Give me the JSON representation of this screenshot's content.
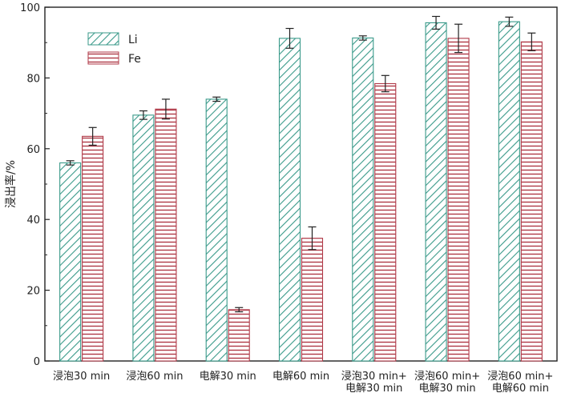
{
  "chart_data": {
    "type": "bar",
    "title": "",
    "xlabel": "",
    "ylabel": "浸出率/%",
    "ylim": [
      0,
      100
    ],
    "yticks": [
      "0",
      "20",
      "40",
      "60",
      "80",
      "100"
    ],
    "categories": [
      [
        "浸泡30 min"
      ],
      [
        "浸泡60 min"
      ],
      [
        "电解30 min"
      ],
      [
        "电解60 min"
      ],
      [
        "浸泡30 min+",
        "电解30 min"
      ],
      [
        "浸泡60 min+",
        "电解30 min"
      ],
      [
        "浸泡60 min+",
        "电解60 min"
      ]
    ],
    "legend_position": "top-left",
    "series": [
      {
        "name": "Li",
        "color": "#3a9a8a",
        "pattern": "diagonal-hatch",
        "values": [
          56.0,
          69.5,
          74.0,
          91.2,
          91.3,
          95.6,
          95.9
        ],
        "errors": [
          0.6,
          1.2,
          0.6,
          2.8,
          0.6,
          1.8,
          1.3
        ]
      },
      {
        "name": "Fe",
        "color": "#b03a48",
        "pattern": "horizontal-lines",
        "values": [
          63.5,
          71.2,
          14.5,
          34.7,
          78.4,
          91.2,
          90.2
        ],
        "errors": [
          2.5,
          2.8,
          0.6,
          3.2,
          2.3,
          4.0,
          2.5
        ]
      }
    ]
  }
}
